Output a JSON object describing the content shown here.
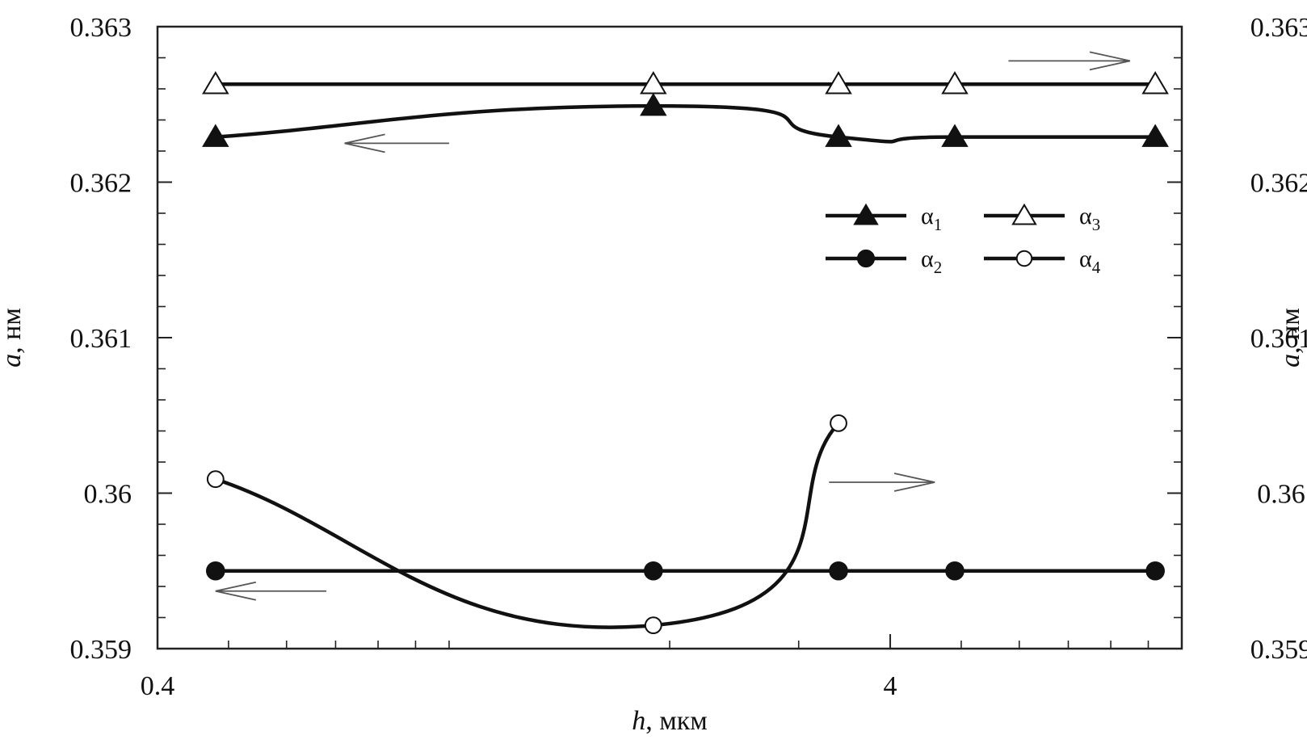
{
  "chart_data": {
    "type": "line",
    "x_scale": "log",
    "xlim": [
      0.4,
      10
    ],
    "ylim": [
      0.359,
      0.363
    ],
    "xlabel": {
      "italic": "h",
      "unit": ", мкм"
    },
    "ylabel_left": {
      "italic": "a",
      "unit": ", нм"
    },
    "ylabel_right": {
      "italic": "a",
      "unit": ", нм"
    },
    "x_ticks": [
      {
        "value": 0.4,
        "label": "0.4"
      },
      {
        "value": 4,
        "label": "4"
      }
    ],
    "x_minor_ticks": [
      0.5,
      0.6,
      0.7,
      0.8,
      0.9,
      1,
      2,
      3,
      5,
      6,
      7,
      8,
      9,
      10
    ],
    "y_ticks": [
      {
        "value": 0.359,
        "label": "0.359"
      },
      {
        "value": 0.36,
        "label": "0.36"
      },
      {
        "value": 0.361,
        "label": "0.361"
      },
      {
        "value": 0.362,
        "label": "0.362"
      },
      {
        "value": 0.363,
        "label": "0.363"
      }
    ],
    "y_minor_step": 0.0002,
    "series": [
      {
        "name": "α",
        "sub": "1",
        "marker": "triangle-filled",
        "smooth": true,
        "x": [
          0.48,
          1.9,
          3.4,
          4.9,
          9.2
        ],
        "y": [
          0.36229,
          0.36249,
          0.36229,
          0.36229,
          0.36229
        ]
      },
      {
        "name": "α",
        "sub": "2",
        "marker": "circle-filled",
        "smooth": false,
        "x": [
          0.48,
          1.9,
          3.4,
          4.9,
          9.2
        ],
        "y": [
          0.3595,
          0.3595,
          0.3595,
          0.3595,
          0.3595
        ]
      },
      {
        "name": "α",
        "sub": "3",
        "marker": "triangle-open",
        "smooth": false,
        "x": [
          0.48,
          1.9,
          3.4,
          4.9,
          9.2
        ],
        "y": [
          0.36263,
          0.36263,
          0.36263,
          0.36263,
          0.36263
        ]
      },
      {
        "name": "α",
        "sub": "4",
        "marker": "circle-open",
        "smooth": true,
        "x": [
          0.48,
          1.9,
          3.4
        ],
        "y": [
          0.36009,
          0.35915,
          0.36045
        ]
      }
    ],
    "annotations": [
      {
        "type": "arrow",
        "direction": "right",
        "x_from": 5.8,
        "x_to": 8.5,
        "y": 0.36278
      },
      {
        "type": "arrow",
        "direction": "left",
        "x_from": 1.0,
        "x_to": 0.72,
        "y": 0.36225
      },
      {
        "type": "arrow",
        "direction": "right",
        "x_from": 3.3,
        "x_to": 4.6,
        "y": 0.36007
      },
      {
        "type": "arrow",
        "direction": "left",
        "x_from": 0.68,
        "x_to": 0.48,
        "y": 0.35937
      }
    ],
    "legend": {
      "position": "upper-right",
      "columns": 2,
      "order": [
        0,
        2,
        1,
        3
      ]
    },
    "grid": false,
    "colors": {
      "line": "#111111",
      "axis": "#222222",
      "arrow": "#555555",
      "background": "#ffffff"
    }
  }
}
